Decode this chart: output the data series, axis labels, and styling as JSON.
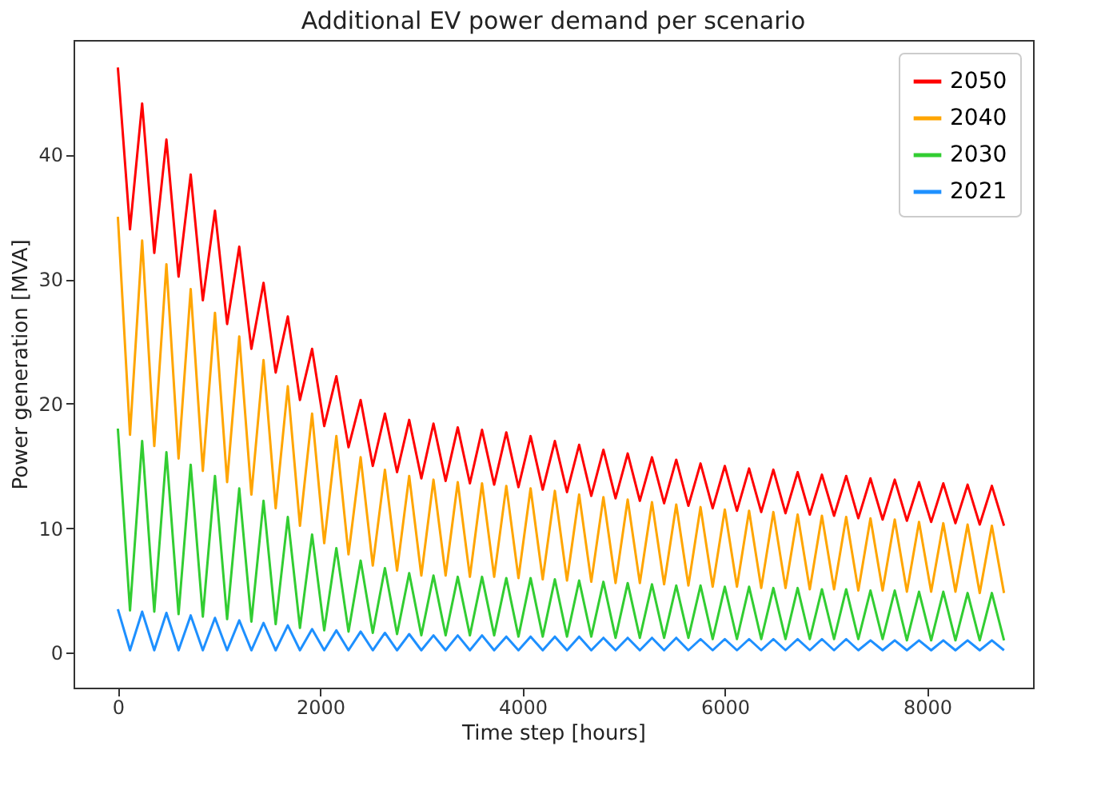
{
  "chart_data": {
    "type": "line",
    "title": "Additional EV power demand per scenario",
    "xlabel": "Time step [hours]",
    "ylabel": "Power generation [MVA]",
    "xlim": [
      -438,
      9047
    ],
    "ylim": [
      -2.8,
      49.2
    ],
    "xticks": [
      0,
      2000,
      4000,
      6000,
      8000
    ],
    "yticks": [
      0,
      10,
      20,
      30,
      40
    ],
    "legend": "top right",
    "line_style": "solid",
    "x": [
      0,
      120,
      240,
      360,
      480,
      600,
      720,
      840,
      960,
      1080,
      1200,
      1320,
      1440,
      1560,
      1680,
      1800,
      1920,
      2040,
      2160,
      2280,
      2400,
      2520,
      2640,
      2760,
      2880,
      3000,
      3120,
      3240,
      3360,
      3480,
      3600,
      3720,
      3840,
      3960,
      4080,
      4200,
      4320,
      4440,
      4560,
      4680,
      4800,
      4920,
      5040,
      5160,
      5280,
      5400,
      5520,
      5640,
      5760,
      5880,
      6000,
      6120,
      6240,
      6360,
      6480,
      6600,
      6720,
      6840,
      6960,
      7080,
      7200,
      7320,
      7440,
      7560,
      7680,
      7800,
      7920,
      8040,
      8160,
      8280,
      8400,
      8520,
      8640,
      8760
    ],
    "series": [
      {
        "name": "2050",
        "color": "#ff0000",
        "values": [
          47,
          34,
          44.1,
          32.1,
          41.2,
          30.2,
          38.4,
          28.3,
          35.5,
          26.4,
          32.6,
          24.4,
          29.7,
          22.5,
          27,
          20.3,
          24.4,
          18.2,
          22.2,
          16.5,
          20.3,
          15,
          19.2,
          14.5,
          18.7,
          14,
          18.4,
          13.8,
          18.1,
          13.6,
          17.9,
          13.5,
          17.7,
          13.3,
          17.4,
          13.1,
          17,
          12.9,
          16.7,
          12.6,
          16.3,
          12.4,
          16,
          12.2,
          15.7,
          12,
          15.5,
          11.8,
          15.2,
          11.6,
          15,
          11.4,
          14.8,
          11.3,
          14.7,
          11.2,
          14.5,
          11.1,
          14.3,
          11,
          14.2,
          10.8,
          14,
          10.7,
          13.9,
          10.6,
          13.7,
          10.5,
          13.6,
          10.4,
          13.5,
          10.3,
          13.4,
          10.2
        ]
      },
      {
        "name": "2040",
        "color": "#ffa500",
        "values": [
          35,
          17.5,
          33.1,
          16.6,
          31.2,
          15.6,
          29.2,
          14.6,
          27.3,
          13.7,
          25.4,
          12.7,
          23.5,
          11.6,
          21.4,
          10.2,
          19.2,
          8.8,
          17.4,
          7.9,
          15.7,
          7,
          14.7,
          6.6,
          14.2,
          6.2,
          13.9,
          6.2,
          13.7,
          6.1,
          13.6,
          6.1,
          13.4,
          6,
          13.2,
          5.9,
          13,
          5.8,
          12.7,
          5.7,
          12.5,
          5.6,
          12.3,
          5.6,
          12.1,
          5.5,
          11.9,
          5.4,
          11.7,
          5.3,
          11.5,
          5.3,
          11.4,
          5.2,
          11.3,
          5.2,
          11.1,
          5.1,
          11,
          5.1,
          10.9,
          5,
          10.8,
          5,
          10.7,
          4.9,
          10.5,
          4.9,
          10.4,
          4.9,
          10.3,
          4.8,
          10.2,
          4.8
        ]
      },
      {
        "name": "2030",
        "color": "#32cd32",
        "values": [
          18,
          3.4,
          17,
          3.3,
          16.1,
          3.1,
          15.1,
          2.9,
          14.2,
          2.7,
          13.2,
          2.5,
          12.2,
          2.3,
          10.9,
          2,
          9.5,
          1.8,
          8.4,
          1.7,
          7.4,
          1.6,
          6.8,
          1.5,
          6.4,
          1.4,
          6.2,
          1.4,
          6.1,
          1.4,
          6.1,
          1.4,
          6,
          1.3,
          6,
          1.3,
          5.9,
          1.3,
          5.8,
          1.3,
          5.7,
          1.2,
          5.6,
          1.2,
          5.5,
          1.2,
          5.4,
          1.2,
          5.4,
          1.1,
          5.3,
          1.1,
          5.3,
          1.1,
          5.2,
          1.1,
          5.2,
          1.1,
          5.1,
          1.1,
          5.1,
          1.1,
          5,
          1.1,
          5,
          1,
          4.9,
          1,
          4.9,
          1,
          4.8,
          1,
          4.8,
          1
        ]
      },
      {
        "name": "2021",
        "color": "#1e90ff",
        "values": [
          3.5,
          0.2,
          3.3,
          0.2,
          3.2,
          0.2,
          3,
          0.2,
          2.8,
          0.2,
          2.6,
          0.2,
          2.4,
          0.2,
          2.2,
          0.2,
          1.9,
          0.2,
          1.8,
          0.2,
          1.7,
          0.2,
          1.6,
          0.2,
          1.5,
          0.2,
          1.4,
          0.2,
          1.4,
          0.2,
          1.4,
          0.2,
          1.3,
          0.2,
          1.3,
          0.2,
          1.3,
          0.2,
          1.3,
          0.2,
          1.2,
          0.2,
          1.2,
          0.2,
          1.2,
          0.2,
          1.2,
          0.2,
          1.1,
          0.2,
          1.1,
          0.2,
          1.1,
          0.2,
          1.1,
          0.2,
          1.1,
          0.2,
          1.1,
          0.2,
          1.1,
          0.2,
          1,
          0.2,
          1,
          0.2,
          1,
          0.2,
          1,
          0.2,
          1,
          0.2,
          1,
          0.2
        ]
      }
    ]
  }
}
